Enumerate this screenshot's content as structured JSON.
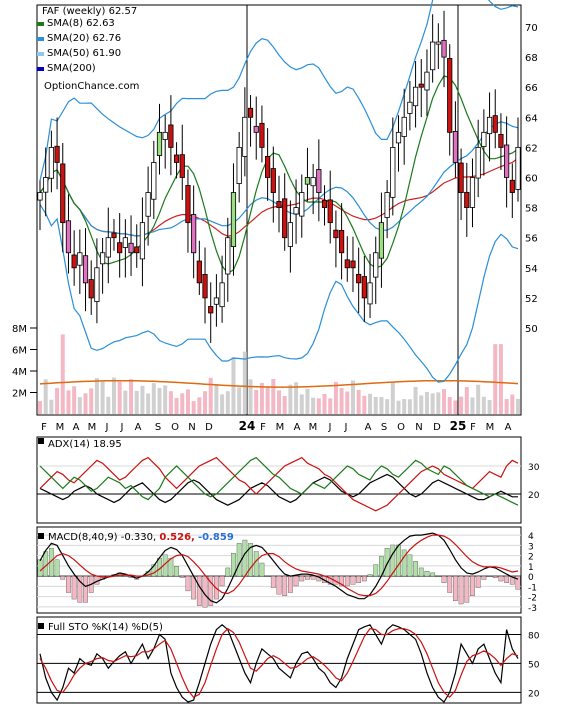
{
  "chart_data": [
    {
      "type": "candlestick",
      "panel": "price",
      "ticker_title": "FAF (weekly)",
      "last_price": "62.57",
      "watermark": "OptionChance.com",
      "legend": [
        {
          "label": "SMA(8)",
          "value": "62.63",
          "color": "#1a7a1a"
        },
        {
          "label": "SMA(20)",
          "value": "62.76",
          "color": "#2a8fd8"
        },
        {
          "label": "SMA(50)",
          "value": "61.90",
          "color": "#8fc8ee"
        },
        {
          "label": "SMA(200)",
          "value": "",
          "color": "#0000cc"
        }
      ],
      "y_ticks": [
        "70",
        "68",
        "66",
        "64",
        "62",
        "60",
        "58",
        "56",
        "54",
        "52",
        "50"
      ],
      "ylim": [
        49,
        71
      ],
      "x_labels": [
        "F",
        "M",
        "A",
        "M",
        "J",
        "J",
        "A",
        "S",
        "O",
        "N",
        "D",
        "24",
        "F",
        "M",
        "A",
        "M",
        "J",
        "J",
        "A",
        "S",
        "O",
        "N",
        "D",
        "25",
        "F",
        "M",
        "A"
      ],
      "closes": [
        59,
        60,
        62,
        61,
        57,
        55,
        54,
        55,
        53,
        52,
        54,
        55,
        56,
        56,
        55,
        56,
        55,
        55,
        57,
        59,
        61,
        63,
        63,
        62,
        61,
        60,
        57,
        55,
        53,
        52,
        51,
        52,
        53,
        56,
        59,
        62,
        64,
        64,
        63,
        62,
        60,
        59,
        58,
        56,
        57,
        58,
        59,
        60,
        60,
        59,
        58,
        57,
        56,
        55,
        54,
        54,
        53,
        52,
        53,
        55,
        57,
        59,
        62,
        63,
        64,
        65,
        66,
        66,
        67,
        69,
        69,
        68,
        63,
        61,
        59,
        58,
        60,
        62,
        63,
        64,
        63,
        62,
        60,
        59,
        62
      ],
      "volume_ticks": [
        "8M",
        "6M",
        "4M",
        "2M"
      ],
      "colors": {
        "up": "#ffffff",
        "down": "#cc1111",
        "sma200": "#cc2222",
        "bb": "#2a8fd8",
        "yellow": "#e8e830",
        "volume": "#f4b8c4",
        "volume_grey": "#d0d0d0",
        "volume_avg": "#e06a10"
      }
    },
    {
      "type": "line",
      "panel": "adx",
      "label": "ADX(14)",
      "value": "18.95",
      "y_ticks": [
        "30",
        "20"
      ],
      "ylim": [
        10,
        40
      ],
      "series": [
        {
          "color": "#000000",
          "values": [
            22,
            21,
            20,
            19,
            18,
            19,
            21,
            22,
            23,
            22,
            20,
            19,
            18,
            17,
            18,
            20,
            22,
            23,
            24,
            22,
            20,
            18,
            17,
            18,
            20,
            22,
            24,
            25,
            24,
            22,
            20,
            18,
            17,
            16,
            17,
            18,
            20,
            22,
            23,
            24,
            23,
            21,
            19,
            18,
            17,
            18,
            20,
            22,
            24,
            25,
            26,
            25,
            23,
            21,
            20,
            19,
            20,
            22,
            24,
            25,
            26,
            27,
            26,
            24,
            22,
            20,
            19,
            20,
            22,
            24,
            25,
            24,
            23,
            22,
            21,
            20,
            19,
            18,
            18,
            19,
            20,
            21,
            20,
            19,
            19
          ]
        },
        {
          "color": "#cc1111",
          "values": [
            22,
            24,
            26,
            28,
            27,
            25,
            24,
            26,
            28,
            30,
            32,
            31,
            29,
            27,
            25,
            26,
            28,
            30,
            32,
            33,
            31,
            29,
            26,
            24,
            22,
            24,
            26,
            28,
            30,
            31,
            32,
            33,
            31,
            29,
            27,
            25,
            24,
            22,
            20,
            22,
            24,
            26,
            28,
            30,
            31,
            32,
            33,
            31,
            30,
            29,
            27,
            26,
            24,
            22,
            20,
            18,
            17,
            16,
            15,
            14,
            15,
            16,
            18,
            20,
            22,
            24,
            26,
            28,
            29,
            30,
            29,
            27,
            26,
            25,
            24,
            23,
            22,
            24,
            26,
            28,
            27,
            26,
            30,
            32,
            31
          ]
        },
        {
          "color": "#1a7a1a",
          "values": [
            30,
            28,
            26,
            24,
            22,
            24,
            26,
            25,
            23,
            21,
            22,
            24,
            26,
            25,
            24,
            22,
            23,
            21,
            19,
            18,
            20,
            22,
            26,
            28,
            30,
            28,
            26,
            24,
            22,
            20,
            19,
            20,
            22,
            24,
            26,
            28,
            30,
            32,
            33,
            31,
            29,
            27,
            26,
            24,
            22,
            21,
            20,
            22,
            24,
            23,
            22,
            24,
            26,
            28,
            30,
            29,
            27,
            26,
            25,
            28,
            30,
            29,
            27,
            26,
            28,
            30,
            32,
            31,
            29,
            28,
            27,
            30,
            29,
            27,
            25,
            23,
            22,
            21,
            20,
            19,
            20,
            19,
            18,
            17,
            16
          ]
        }
      ]
    },
    {
      "type": "histogram+line",
      "panel": "macd",
      "label": "MACD(8,40,9)",
      "value": "-0.330,",
      "value2": "0.526,",
      "value3": "-0.859",
      "y_ticks": [
        "4",
        "3",
        "2",
        "1",
        "0",
        "-1",
        "-2",
        "-3"
      ],
      "ylim": [
        -3.5,
        4.5
      ],
      "macd": [
        1.5,
        2.5,
        3.2,
        3.0,
        2.0,
        1.0,
        0.2,
        -0.5,
        -1.0,
        -0.8,
        -0.5,
        -0.3,
        -0.1,
        0.1,
        0.3,
        0.2,
        0.0,
        -0.2,
        0.0,
        0.4,
        1.0,
        1.8,
        2.5,
        2.8,
        2.6,
        2.0,
        1.0,
        0.0,
        -1.0,
        -1.8,
        -2.4,
        -2.6,
        -2.2,
        -1.2,
        0.0,
        1.2,
        2.2,
        2.8,
        3.0,
        2.8,
        2.2,
        1.5,
        0.8,
        0.2,
        0.0,
        0.1,
        0.2,
        0.2,
        0.1,
        -0.1,
        -0.4,
        -0.7,
        -1.0,
        -1.4,
        -1.8,
        -2.0,
        -2.2,
        -2.2,
        -1.8,
        -1.0,
        0.0,
        1.2,
        2.2,
        3.0,
        3.5,
        3.9,
        4.0,
        4.0,
        4.1,
        4.2,
        4.0,
        3.5,
        2.6,
        1.6,
        0.8,
        0.3,
        0.2,
        0.4,
        0.7,
        0.9,
        0.8,
        0.5,
        0.2,
        -0.1,
        -0.3
      ],
      "signal": [
        0.5,
        1.0,
        1.5,
        2.0,
        2.2,
        2.0,
        1.6,
        1.1,
        0.6,
        0.2,
        0.0,
        -0.1,
        -0.1,
        0.0,
        0.1,
        0.1,
        0.1,
        0.0,
        0.0,
        0.1,
        0.3,
        0.7,
        1.2,
        1.7,
        2.0,
        2.1,
        1.9,
        1.4,
        0.8,
        0.1,
        -0.6,
        -1.2,
        -1.6,
        -1.7,
        -1.4,
        -0.8,
        0.0,
        0.8,
        1.5,
        2.0,
        2.2,
        2.2,
        1.9,
        1.4,
        1.0,
        0.7,
        0.5,
        0.4,
        0.3,
        0.2,
        0.0,
        -0.2,
        -0.5,
        -0.8,
        -1.2,
        -1.5,
        -1.8,
        -1.9,
        -1.9,
        -1.7,
        -1.2,
        -0.5,
        0.3,
        1.1,
        1.9,
        2.6,
        3.1,
        3.5,
        3.8,
        4.0,
        4.0,
        3.9,
        3.6,
        3.1,
        2.5,
        1.9,
        1.4,
        1.1,
        0.9,
        0.9,
        0.9,
        0.8,
        0.6,
        0.4,
        0.5
      ],
      "colors": {
        "pos": "#b0e0a8",
        "neg": "#f4b8c4",
        "line": "#000000",
        "signal": "#cc1111",
        "v2": "#cc1111",
        "v3": "#2a6fd8"
      }
    },
    {
      "type": "line",
      "panel": "stochastic",
      "label": "Full STO %K(14) %D(5)",
      "y_ticks": [
        "80",
        "50",
        "20"
      ],
      "ylim": [
        10,
        95
      ],
      "k": [
        60,
        35,
        20,
        12,
        25,
        45,
        40,
        55,
        50,
        48,
        60,
        55,
        45,
        52,
        58,
        62,
        50,
        60,
        70,
        55,
        65,
        80,
        75,
        40,
        25,
        15,
        10,
        12,
        30,
        50,
        70,
        85,
        90,
        85,
        70,
        55,
        40,
        30,
        50,
        65,
        60,
        55,
        45,
        40,
        35,
        50,
        60,
        62,
        55,
        45,
        40,
        30,
        25,
        35,
        55,
        70,
        85,
        88,
        90,
        80,
        70,
        85,
        90,
        88,
        85,
        80,
        75,
        60,
        40,
        25,
        15,
        10,
        20,
        40,
        70,
        60,
        50,
        65,
        70,
        55,
        40,
        30,
        85,
        65,
        55
      ],
      "d": [
        55,
        45,
        32,
        22,
        20,
        28,
        38,
        45,
        50,
        52,
        55,
        56,
        53,
        52,
        55,
        58,
        57,
        58,
        62,
        62,
        65,
        70,
        74,
        65,
        50,
        35,
        22,
        15,
        18,
        30,
        48,
        65,
        80,
        86,
        82,
        72,
        58,
        45,
        42,
        48,
        55,
        58,
        55,
        50,
        45,
        46,
        50,
        55,
        57,
        53,
        48,
        42,
        35,
        32,
        40,
        52,
        65,
        78,
        86,
        85,
        80,
        80,
        84,
        86,
        86,
        84,
        80,
        72,
        60,
        45,
        30,
        20,
        15,
        22,
        38,
        52,
        58,
        60,
        63,
        60,
        55,
        48,
        55,
        60,
        58
      ]
    }
  ]
}
